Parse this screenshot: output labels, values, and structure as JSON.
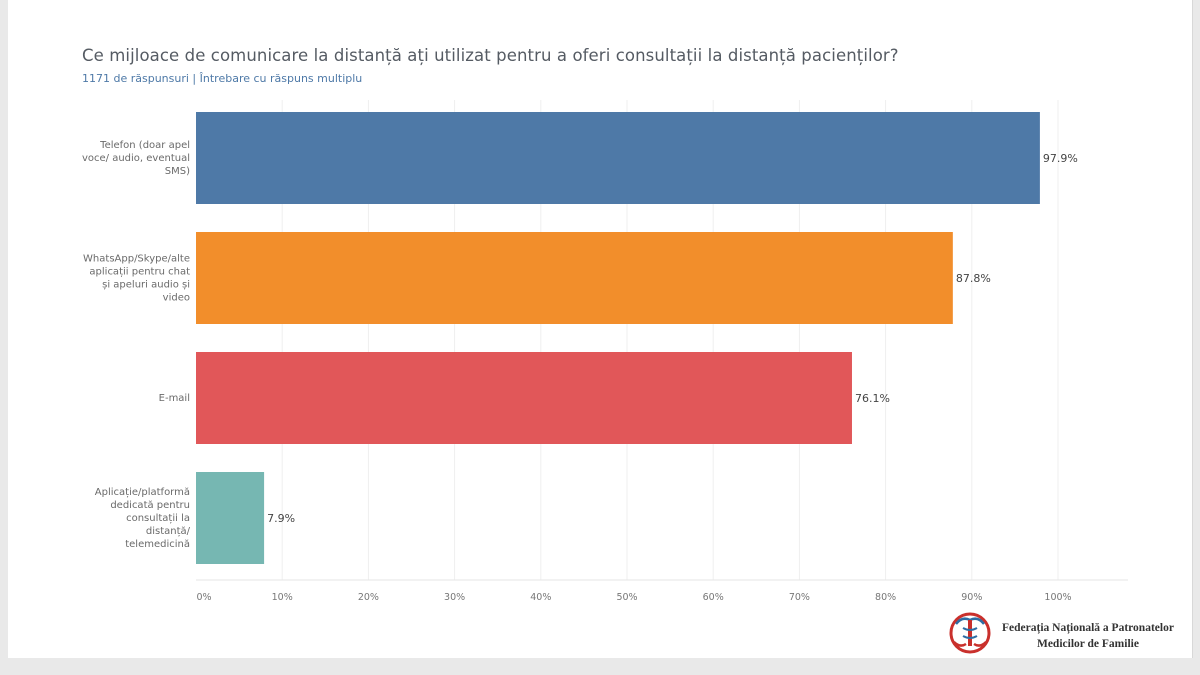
{
  "chart_data": {
    "type": "bar",
    "orientation": "horizontal",
    "title": "Ce mijloace de comunicare la distanță ați utilizat pentru a oferi consultații la distanță pacienților?",
    "subtitle": "1171 de răspunsuri | Întrebare cu răspuns multiplu",
    "categories": [
      [
        "Telefon (doar apel",
        "voce/ audio, eventual",
        "SMS)"
      ],
      [
        "WhatsApp/Skype/alte",
        "aplicații pentru chat",
        "și apeluri audio și",
        "video"
      ],
      [
        "E-mail"
      ],
      [
        "Aplicație/platformă",
        "dedicată pentru",
        "consultații la",
        "distanță/",
        "telemedicină"
      ]
    ],
    "values": [
      97.9,
      87.8,
      76.1,
      7.9
    ],
    "value_labels": [
      "97.9%",
      "87.8%",
      "76.1%",
      "7.9%"
    ],
    "colors": [
      "#4e79a7",
      "#f28e2b",
      "#e15759",
      "#76b7b2"
    ],
    "xlim": [
      0,
      100
    ],
    "xticks": [
      0,
      10,
      20,
      30,
      40,
      50,
      60,
      70,
      80,
      90,
      100
    ],
    "xtick_labels": [
      "0%",
      "10%",
      "20%",
      "30%",
      "40%",
      "50%",
      "60%",
      "70%",
      "80%",
      "90%",
      "100%"
    ],
    "grid": true,
    "legend": "none"
  },
  "logo": {
    "line1": "Federația Națională a Patronatelor",
    "line2": "Medicilor de Familie"
  }
}
